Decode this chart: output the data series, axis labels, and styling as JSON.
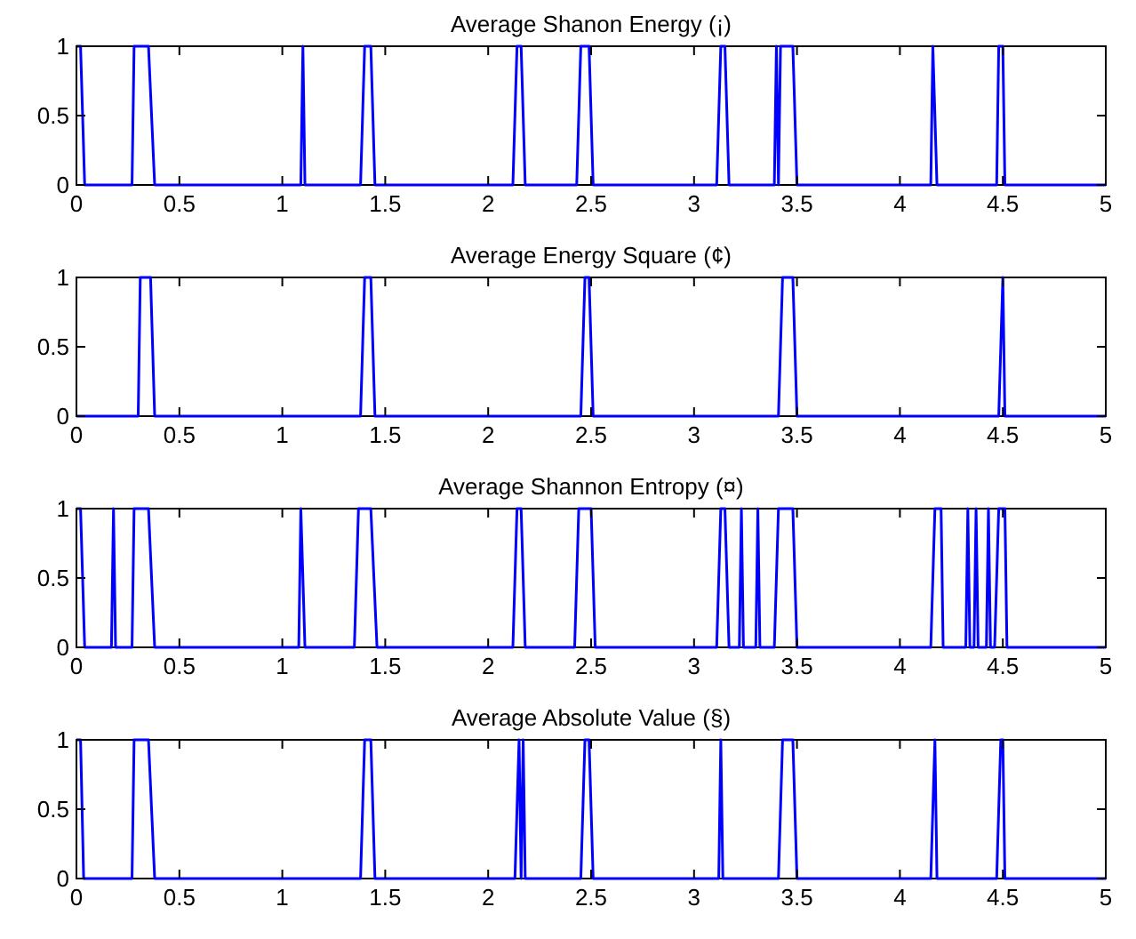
{
  "chart_data": [
    {
      "type": "line",
      "title": "Average Shanon Energy (¡)",
      "color": "#0000ff",
      "xlim": [
        0,
        5
      ],
      "ylim": [
        0,
        1
      ],
      "xticks": [
        0,
        0.5,
        1,
        1.5,
        2,
        2.5,
        3,
        3.5,
        4,
        4.5,
        5
      ],
      "yticks": [
        0,
        0.5,
        1
      ],
      "x": [
        0,
        0.02,
        0.04,
        0.27,
        0.28,
        0.35,
        0.38,
        1.09,
        1.1,
        1.11,
        1.38,
        1.4,
        1.43,
        1.45,
        2.12,
        2.14,
        2.16,
        2.18,
        2.43,
        2.45,
        2.49,
        2.51,
        3.11,
        3.13,
        3.15,
        3.17,
        3.39,
        3.4,
        3.41,
        3.42,
        3.48,
        3.5,
        4.15,
        4.16,
        4.18,
        4.47,
        4.48,
        4.5,
        4.51,
        5
      ],
      "values": [
        1,
        1,
        0,
        0,
        1,
        1,
        0,
        0,
        1,
        0,
        0,
        1,
        1,
        0,
        0,
        1,
        1,
        0,
        0,
        1,
        1,
        0,
        0,
        1,
        1,
        0,
        0,
        1,
        0,
        1,
        1,
        0,
        0,
        1,
        0,
        0,
        1,
        1,
        0,
        0
      ]
    },
    {
      "type": "line",
      "title": "Average Energy Square (¢)",
      "color": "#0000ff",
      "xlim": [
        0,
        5
      ],
      "ylim": [
        0,
        1
      ],
      "xticks": [
        0,
        0.5,
        1,
        1.5,
        2,
        2.5,
        3,
        3.5,
        4,
        4.5,
        5
      ],
      "yticks": [
        0,
        0.5,
        1
      ],
      "x": [
        0,
        0.3,
        0.31,
        0.36,
        0.38,
        1.38,
        1.4,
        1.43,
        1.45,
        2.45,
        2.47,
        2.49,
        2.51,
        3.41,
        3.43,
        3.48,
        3.5,
        4.48,
        4.5,
        4.51,
        5
      ],
      "values": [
        0,
        0,
        1,
        1,
        0,
        0,
        1,
        1,
        0,
        0,
        1,
        1,
        0,
        0,
        1,
        1,
        0,
        0,
        1,
        0,
        0
      ]
    },
    {
      "type": "line",
      "title": "Average Shannon Entropy (¤)",
      "color": "#0000ff",
      "xlim": [
        0,
        5
      ],
      "ylim": [
        0,
        1
      ],
      "xticks": [
        0,
        0.5,
        1,
        1.5,
        2,
        2.5,
        3,
        3.5,
        4,
        4.5,
        5
      ],
      "yticks": [
        0,
        0.5,
        1
      ],
      "x": [
        0,
        0.02,
        0.04,
        0.17,
        0.18,
        0.19,
        0.27,
        0.28,
        0.35,
        0.38,
        1.08,
        1.09,
        1.11,
        1.35,
        1.37,
        1.43,
        1.46,
        2.12,
        2.14,
        2.16,
        2.18,
        2.42,
        2.44,
        2.5,
        2.52,
        3.11,
        3.13,
        3.15,
        3.17,
        3.22,
        3.23,
        3.24,
        3.3,
        3.31,
        3.32,
        3.39,
        3.41,
        3.48,
        3.5,
        4.15,
        4.17,
        4.2,
        4.21,
        4.32,
        4.33,
        4.34,
        4.36,
        4.37,
        4.38,
        4.42,
        4.43,
        4.44,
        4.46,
        4.48,
        4.51,
        4.52,
        5
      ],
      "values": [
        1,
        1,
        0,
        0,
        1,
        0,
        0,
        1,
        1,
        0,
        0,
        1,
        0,
        0,
        1,
        1,
        0,
        0,
        1,
        1,
        0,
        0,
        1,
        1,
        0,
        0,
        1,
        1,
        0,
        0,
        1,
        0,
        0,
        1,
        0,
        0,
        1,
        1,
        0,
        0,
        1,
        1,
        0,
        0,
        1,
        0,
        0,
        1,
        0,
        0,
        1,
        0,
        0,
        1,
        1,
        0,
        0
      ]
    },
    {
      "type": "line",
      "title": "Average Absolute Value (§)",
      "color": "#0000ff",
      "xlim": [
        0,
        5
      ],
      "ylim": [
        0,
        1
      ],
      "xticks": [
        0,
        0.5,
        1,
        1.5,
        2,
        2.5,
        3,
        3.5,
        4,
        4.5,
        5
      ],
      "yticks": [
        0,
        0.5,
        1
      ],
      "x": [
        0,
        0.02,
        0.035,
        0.27,
        0.28,
        0.35,
        0.38,
        1.38,
        1.4,
        1.43,
        1.45,
        2.13,
        2.15,
        2.16,
        2.17,
        2.18,
        2.45,
        2.47,
        2.49,
        2.51,
        3.12,
        3.13,
        3.14,
        3.41,
        3.43,
        3.48,
        3.5,
        4.15,
        4.17,
        4.18,
        4.47,
        4.49,
        4.5,
        4.51,
        5
      ],
      "values": [
        1,
        1,
        0,
        0,
        1,
        1,
        0,
        0,
        1,
        1,
        0,
        0,
        1,
        0,
        1,
        0,
        0,
        1,
        1,
        0,
        0,
        1,
        0,
        0,
        1,
        1,
        0,
        0,
        1,
        0,
        0,
        1,
        1,
        0,
        0
      ]
    }
  ]
}
